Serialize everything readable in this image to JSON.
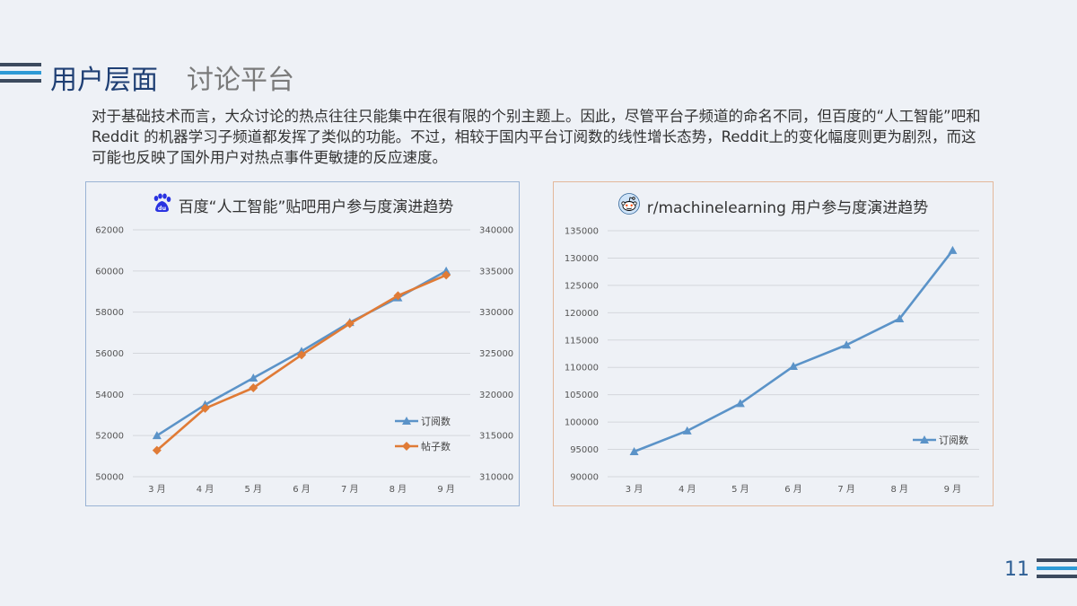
{
  "header": {
    "title_main": "用户层面",
    "title_sub": "讨论平台"
  },
  "paragraph": "对于基础技术而言，大众讨论的热点往往只能集中在很有限的个别主题上。因此，尽管平台子频道的命名不同，但百度的“人工智能”吧和 Reddit 的机器学习子频道都发挥了类似的功能。不过，相较于国内平台订阅数的线性增长态势，Reddit上的变化幅度则更为剧烈，而这可能也反映了国外用户对热点事件更敏捷的反应速度。",
  "page_number": "11",
  "colors": {
    "blue": "#5b93c8",
    "orange": "#e07b36",
    "title_blue": "#1f3f74",
    "stripe_dark": "#3c4a5e",
    "stripe_light": "#2e9ad6"
  },
  "icons": {
    "left": "baidu-paw-icon",
    "right": "reddit-alien-icon"
  },
  "chart_data": [
    {
      "type": "line",
      "title": "百度“人工智能”贴吧用户参与度演进趋势",
      "categories": [
        "3 月",
        "4 月",
        "5 月",
        "6 月",
        "7 月",
        "8 月",
        "9 月"
      ],
      "series": [
        {
          "name": "订阅数",
          "axis": "left",
          "color": "#5b93c8",
          "marker": "triangle",
          "values": [
            52000,
            53500,
            54800,
            56100,
            57500,
            58700,
            60000
          ]
        },
        {
          "name": "帖子数",
          "axis": "right",
          "color": "#e07b36",
          "marker": "diamond",
          "values": [
            313200,
            318300,
            320800,
            324800,
            328600,
            332000,
            334500
          ]
        }
      ],
      "ylim_left": [
        50000,
        62000
      ],
      "ylim_right": [
        310000,
        340000
      ],
      "yticks_left": [
        50000,
        52000,
        54000,
        56000,
        58000,
        60000,
        62000
      ],
      "yticks_right": [
        310000,
        315000,
        320000,
        325000,
        330000,
        335000,
        340000
      ],
      "grid": true,
      "legend": "bottom-right"
    },
    {
      "type": "line",
      "title": "r/machinelearning 用户参与度演进趋势",
      "categories": [
        "3 月",
        "4 月",
        "5 月",
        "6 月",
        "7 月",
        "8 月",
        "9 月"
      ],
      "series": [
        {
          "name": "订阅数",
          "color": "#5b93c8",
          "marker": "triangle",
          "values": [
            94600,
            98400,
            103400,
            110200,
            114100,
            118900,
            131400
          ]
        }
      ],
      "ylim": [
        90000,
        135000
      ],
      "yticks": [
        90000,
        95000,
        100000,
        105000,
        110000,
        115000,
        120000,
        125000,
        130000,
        135000
      ],
      "grid": true,
      "legend": "bottom-right"
    }
  ]
}
